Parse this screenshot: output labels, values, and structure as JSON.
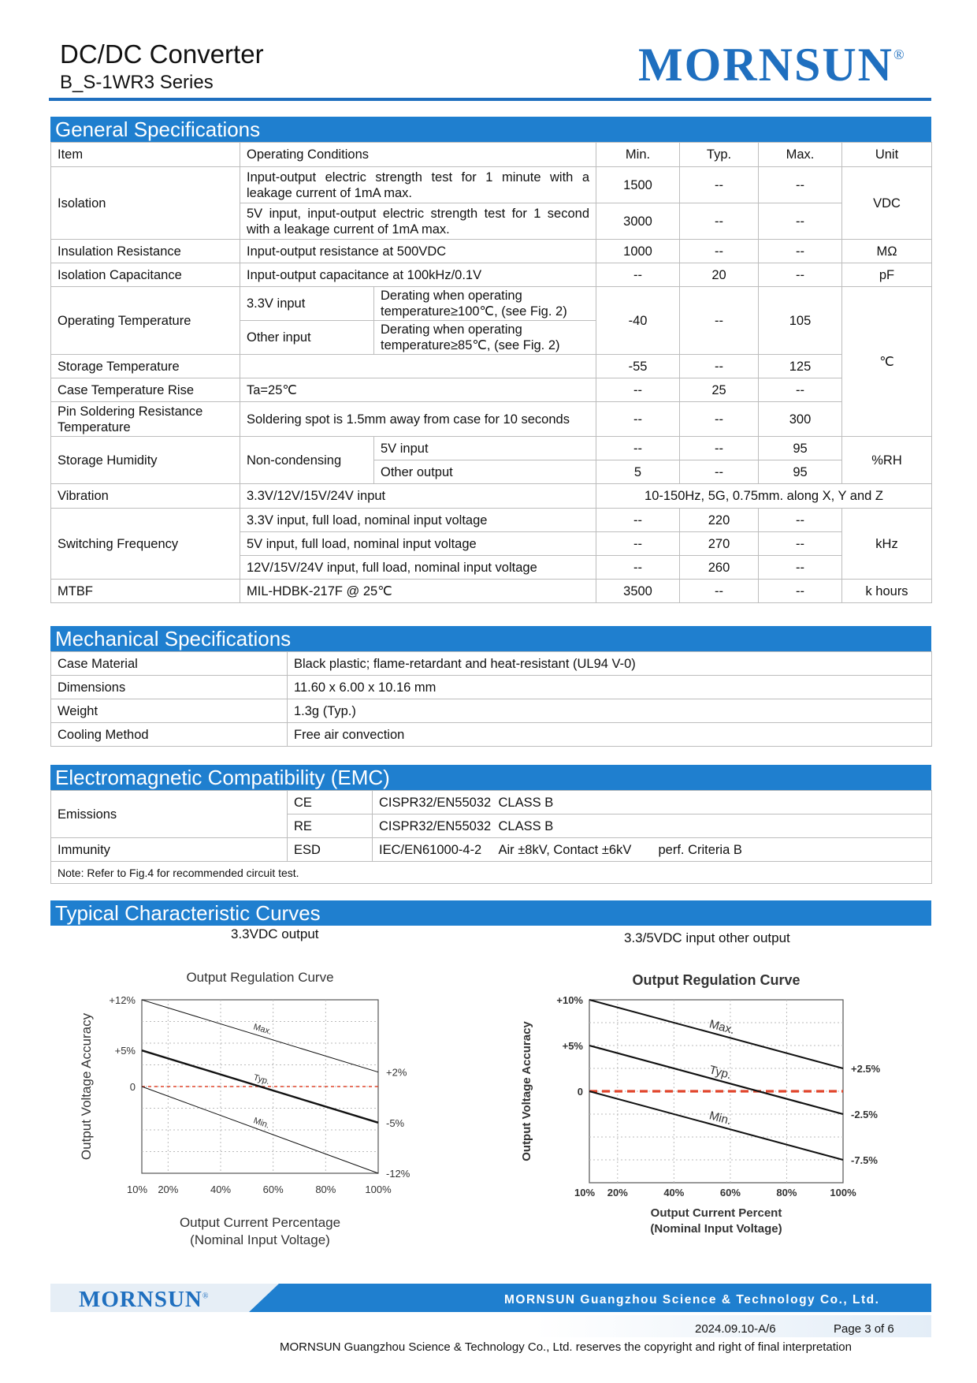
{
  "header": {
    "title": "DC/DC Converter",
    "series": "B_S-1WR3 Series",
    "brand": "MORNSUN",
    "registered": "®"
  },
  "general": {
    "title": "General Specifications",
    "head": {
      "item": "Item",
      "cond": "Operating Conditions",
      "min": "Min.",
      "typ": "Typ.",
      "max": "Max.",
      "unit": "Unit"
    },
    "isolation": {
      "item": "Isolation",
      "r1": {
        "cond": "Input-output electric strength test for 1 minute with a leakage current of 1mA max.",
        "min": "1500",
        "typ": "--",
        "max": "--"
      },
      "r2": {
        "cond": "5V input, input-output electric strength test for 1 second with a leakage current of 1mA max.",
        "min": "3000",
        "typ": "--",
        "max": "--"
      },
      "unit": "VDC"
    },
    "insulation": {
      "item": "Insulation Resistance",
      "cond": "Input-output resistance at 500VDC",
      "min": "1000",
      "typ": "--",
      "max": "--",
      "unit": "MΩ"
    },
    "capacitance": {
      "item": "Isolation Capacitance",
      "cond": "Input-output capacitance at 100kHz/0.1V",
      "min": "--",
      "typ": "20",
      "max": "--",
      "unit": "pF"
    },
    "op_temp": {
      "item": "Operating Temperature",
      "r1_input": "3.3V input",
      "r1_note": "Derating when operating temperature≥100℃, (see Fig. 2)",
      "r2_input": "Other input",
      "r2_note": "Derating when operating temperature≥85℃, (see Fig. 2)",
      "min": "-40",
      "typ": "--",
      "max": "105"
    },
    "temp_unit": "℃",
    "storage_temp": {
      "item": "Storage Temperature",
      "cond": "",
      "min": "-55",
      "typ": "--",
      "max": "125"
    },
    "case_rise": {
      "item": "Case Temperature Rise",
      "cond": "Ta=25℃",
      "min": "--",
      "typ": "25",
      "max": "--"
    },
    "solder": {
      "item": "Pin Soldering Resistance Temperature",
      "cond": "Soldering spot is 1.5mm away from case for 10 seconds",
      "min": "--",
      "typ": "--",
      "max": "300"
    },
    "humidity": {
      "item": "Storage Humidity",
      "cond": "Non-condensing",
      "r1": {
        "sub": "5V input",
        "min": "--",
        "typ": "--",
        "max": "95"
      },
      "r2": {
        "sub": "Other output",
        "min": "5",
        "typ": "--",
        "max": "95"
      },
      "unit": "%RH"
    },
    "vibration": {
      "item": "Vibration",
      "cond": "3.3V/12V/15V/24V input",
      "value": "10-150Hz, 5G, 0.75mm. along X, Y and Z"
    },
    "switching": {
      "item": "Switching Frequency",
      "r1": {
        "cond": "3.3V input, full load, nominal input voltage",
        "min": "--",
        "typ": "220",
        "max": "--"
      },
      "r2": {
        "cond": "5V input, full load, nominal input voltage",
        "min": "--",
        "typ": "270",
        "max": "--"
      },
      "r3": {
        "cond": "12V/15V/24V input, full load, nominal input voltage",
        "min": "--",
        "typ": "260",
        "max": "--"
      },
      "unit": "kHz"
    },
    "mtbf": {
      "item": "MTBF",
      "cond": "MIL-HDBK-217F @ 25℃",
      "min": "3500",
      "typ": "--",
      "max": "--",
      "unit": "k hours"
    }
  },
  "mechanical": {
    "title": "Mechanical Specifications",
    "rows": [
      {
        "k": "Case Material",
        "v": "Black plastic; flame-retardant and heat-resistant (UL94 V-0)"
      },
      {
        "k": "Dimensions",
        "v": "11.60 x 6.00 x 10.16 mm"
      },
      {
        "k": "Weight",
        "v": "1.3g (Typ.)"
      },
      {
        "k": "Cooling Method",
        "v": "Free air convection"
      }
    ]
  },
  "emc": {
    "title": "Electromagnetic Compatibility (EMC)",
    "emissions": "Emissions",
    "ce": "CE",
    "ce_std": "CISPR32/EN55032",
    "ce_class": "CLASS B",
    "re": "RE",
    "re_std": "CISPR32/EN55032",
    "re_class": "CLASS B",
    "immunity": "Immunity",
    "esd": "ESD",
    "esd_std": "IEC/EN61000-4-2",
    "esd_level": "Air ±8kV, Contact ±6kV",
    "esd_crit": "perf. Criteria B",
    "note": "Note: Refer to Fig.4 for recommended circuit test."
  },
  "curves": {
    "title": "Typical Characteristic Curves",
    "left_caption": "3.3VDC output",
    "right_caption": "3.3/5VDC input other output"
  },
  "chart_data": [
    {
      "type": "line",
      "title": "Output Regulation Curve",
      "xlabel": "Output Current Percentage",
      "xlabel2": "(Nominal Input Voltage)",
      "ylabel": "Output Voltage Accuracy",
      "x_ticks": [
        "10%",
        "20%",
        "40%",
        "60%",
        "80%",
        "100%"
      ],
      "xlim": [
        10,
        100
      ],
      "ylim": [
        -12,
        12
      ],
      "left_ticks": [
        {
          "v": 12,
          "label": "+12%"
        },
        {
          "v": 5,
          "label": "+5%"
        },
        {
          "v": 0,
          "label": "0"
        }
      ],
      "right_ticks": [
        {
          "v": 2,
          "label": "+2%"
        },
        {
          "v": -5,
          "label": "-5%"
        },
        {
          "v": -12,
          "label": "-12%"
        }
      ],
      "series": [
        {
          "name": "Max.",
          "x": [
            10,
            100
          ],
          "y": [
            12,
            2
          ]
        },
        {
          "name": "Typ.",
          "x": [
            10,
            100
          ],
          "y": [
            5,
            -5
          ]
        },
        {
          "name": "Min.",
          "x": [
            10,
            100
          ],
          "y": [
            0,
            -12
          ]
        }
      ],
      "reference_y": 0,
      "grid": true
    },
    {
      "type": "line",
      "title": "Output Regulation Curve",
      "xlabel": "Output Current Percent",
      "xlabel2": "(Nominal Input Voltage)",
      "ylabel": "Output Voltage Accuracy",
      "x_ticks": [
        "10%",
        "20%",
        "40%",
        "60%",
        "80%",
        "100%"
      ],
      "xlim": [
        10,
        100
      ],
      "ylim": [
        -10,
        10
      ],
      "left_ticks": [
        {
          "v": 10,
          "label": "+10%"
        },
        {
          "v": 5,
          "label": "+5%"
        },
        {
          "v": 0,
          "label": "0"
        }
      ],
      "right_ticks": [
        {
          "v": 2.5,
          "label": "+2.5%"
        },
        {
          "v": -2.5,
          "label": "-2.5%"
        },
        {
          "v": -7.5,
          "label": "-7.5%"
        }
      ],
      "series": [
        {
          "name": "Max.",
          "x": [
            10,
            100
          ],
          "y": [
            10,
            2.5
          ]
        },
        {
          "name": "Typ.",
          "x": [
            10,
            100
          ],
          "y": [
            5,
            -2.5
          ]
        },
        {
          "name": "Min.",
          "x": [
            10,
            100
          ],
          "y": [
            0,
            -7.5
          ]
        }
      ],
      "reference_y": 0,
      "grid": true
    }
  ],
  "footer": {
    "brand": "MORNSUN",
    "registered": "®",
    "company": "MORNSUN Guangzhou Science & Technology Co., Ltd.",
    "date": "2024.09.10-A/6",
    "page": "Page 3 of 6",
    "copyright": "MORNSUN Guangzhou Science & Technology Co., Ltd. reserves the copyright and right of final interpretation"
  }
}
